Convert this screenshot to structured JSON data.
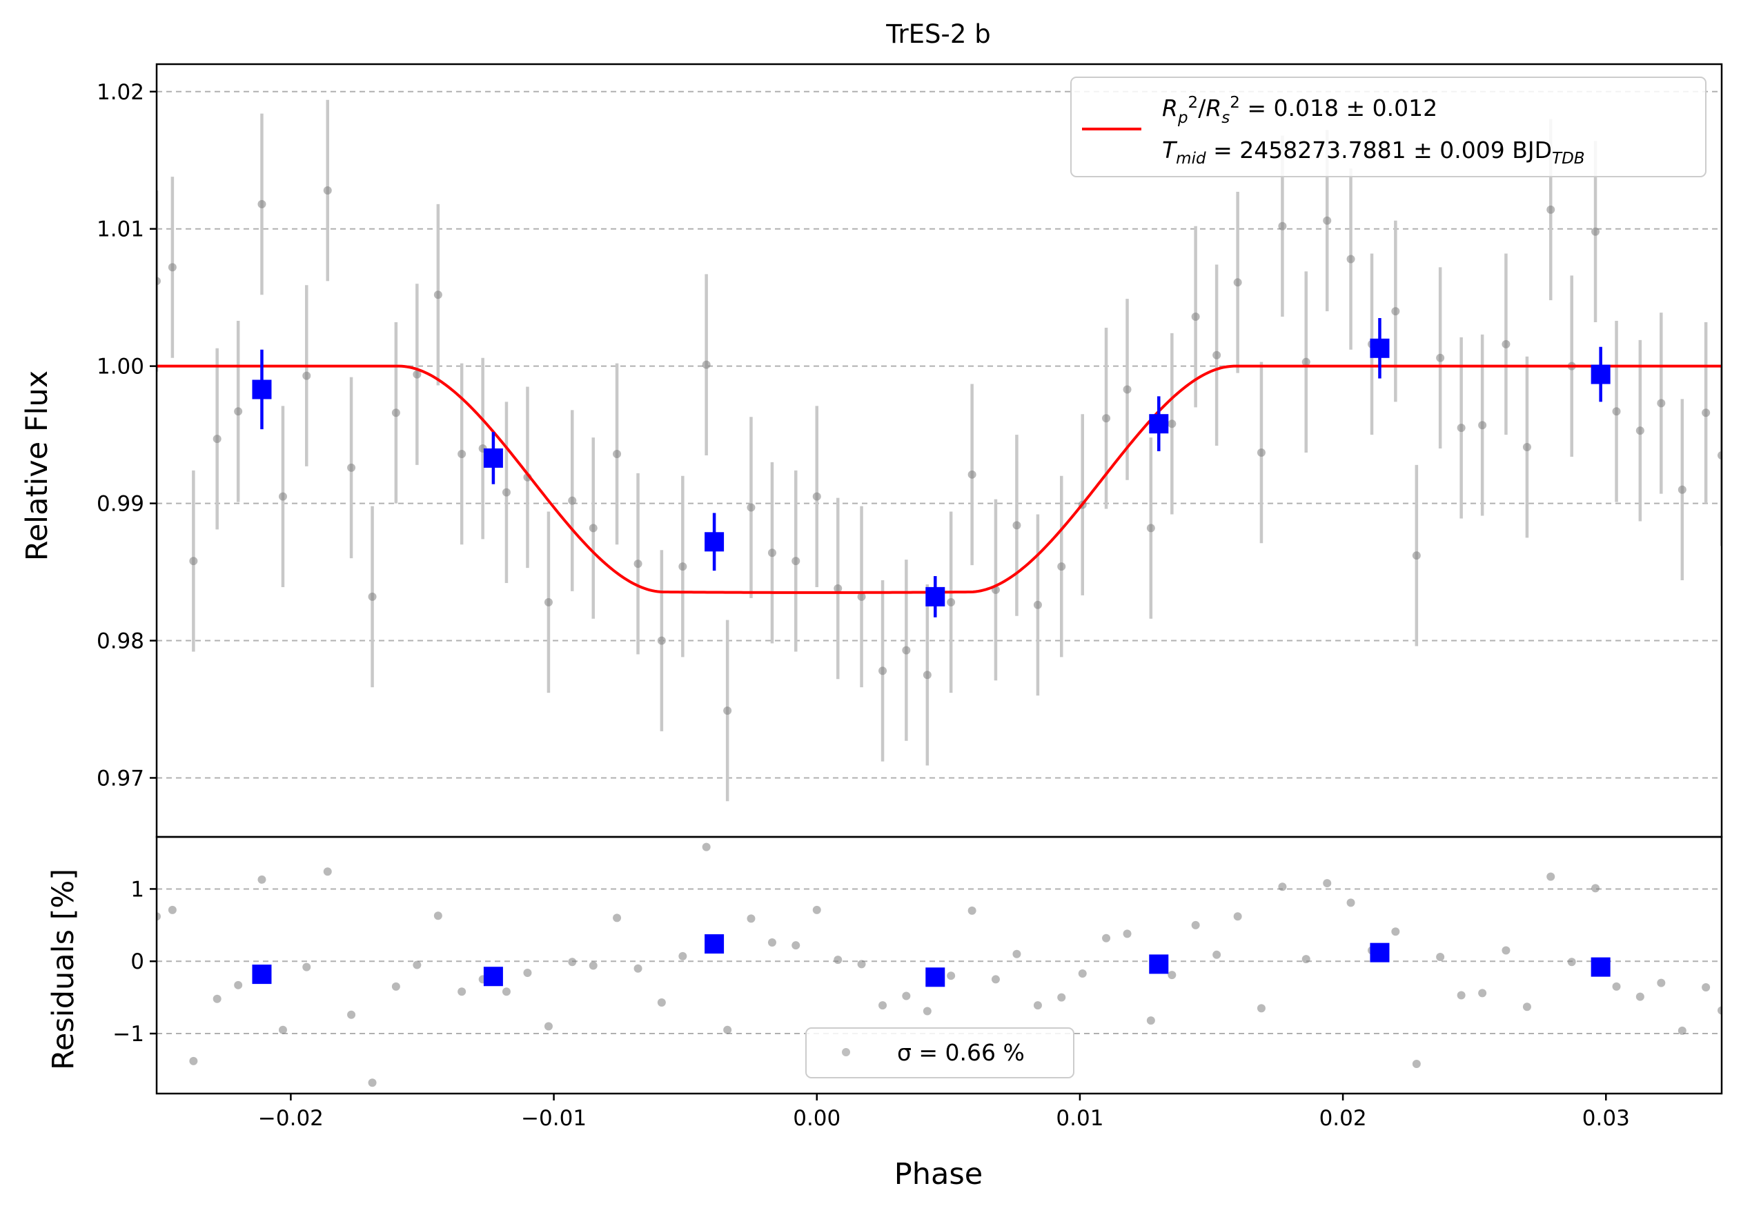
{
  "chart_data": [
    {
      "type": "scatter",
      "title": "TrES-2 b",
      "xlabel": "",
      "ylabel": "Relative Flux",
      "xlim": [
        -0.0251,
        0.0344
      ],
      "ylim": [
        0.9657,
        1.022
      ],
      "xticks": [
        -0.02,
        -0.01,
        0.0,
        0.01,
        0.02,
        0.03
      ],
      "xtick_labels": [
        "−0.02",
        "−0.01",
        "0.00",
        "0.01",
        "0.02",
        "0.03"
      ],
      "yticks": [
        0.97,
        0.98,
        0.99,
        1.0,
        1.01,
        1.02
      ],
      "ytick_labels": [
        "0.97",
        "0.98",
        "0.99",
        "1.00",
        "1.01",
        "1.02"
      ],
      "grid": "horizontal dashed",
      "legend_position": "upper right",
      "legend": {
        "line1": "R²p/R²s = 0.018 ± 0.012",
        "line2": "Tmid = 2458273.7881 ± 0.009 BJDTDB"
      },
      "colors": {
        "data": "#808080",
        "errorbar": "#c8c8c8",
        "binned": "#0000ff",
        "model": "#ff0000"
      },
      "data_points": {
        "x": [
          -0.0251,
          -0.0245,
          -0.0237,
          -0.0228,
          -0.022,
          -0.0211,
          -0.0203,
          -0.0194,
          -0.0186,
          -0.0177,
          -0.0169,
          -0.016,
          -0.0152,
          -0.0144,
          -0.0135,
          -0.0127,
          -0.0118,
          -0.011,
          -0.0102,
          -0.0093,
          -0.0085,
          -0.0076,
          -0.0068,
          -0.0059,
          -0.0051,
          -0.0042,
          -0.0034,
          -0.0025,
          -0.0017,
          -0.0008,
          0.0,
          0.0008,
          0.0017,
          0.0025,
          0.0034,
          0.0042,
          0.0051,
          0.0059,
          0.0068,
          0.0076,
          0.0084,
          0.0093,
          0.0101,
          0.011,
          0.0118,
          0.0127,
          0.0135,
          0.0144,
          0.0152,
          0.016,
          0.0169,
          0.0177,
          0.0186,
          0.0194,
          0.0203,
          0.0211,
          0.022,
          0.0228,
          0.0237,
          0.0245,
          0.0253,
          0.0262,
          0.027,
          0.0279,
          0.0287,
          0.0296,
          0.0304,
          0.0313,
          0.0321,
          0.0329,
          0.0338,
          0.0344
        ],
        "y": [
          1.0062,
          1.0072,
          0.9858,
          0.9947,
          0.9967,
          1.0118,
          0.9905,
          0.9993,
          1.0128,
          0.9926,
          0.9832,
          0.9966,
          0.9994,
          1.0052,
          0.9936,
          0.994,
          0.9908,
          0.9919,
          0.9828,
          0.9902,
          0.9882,
          0.9936,
          0.9856,
          0.98,
          0.9854,
          1.0001,
          0.9749,
          0.9897,
          0.9864,
          0.9858,
          0.9905,
          0.9838,
          0.9832,
          0.9778,
          0.9793,
          0.9775,
          0.9828,
          0.9921,
          0.9837,
          0.9884,
          0.9826,
          0.9854,
          0.9899,
          0.9962,
          0.9983,
          0.9882,
          0.9958,
          1.0036,
          1.0008,
          1.0061,
          0.9937,
          1.0102,
          1.0003,
          1.0106,
          1.0078,
          1.0016,
          1.004,
          0.9862,
          1.0006,
          0.9955,
          0.9957,
          1.0016,
          0.9941,
          1.0114,
          1.0,
          1.0098,
          0.9967,
          0.9953,
          0.9973,
          0.991,
          0.9966,
          0.9935
        ],
        "yerr": 0.0066
      },
      "binned_points": {
        "x": [
          -0.0211,
          -0.0123,
          -0.0039,
          0.0045,
          0.013,
          0.0214,
          0.0298
        ],
        "y": [
          0.9983,
          0.9933,
          0.9872,
          0.9832,
          0.9958,
          1.0013,
          0.9994
        ],
        "yerr": [
          0.0029,
          0.0019,
          0.0021,
          0.0015,
          0.002,
          0.0022,
          0.002
        ]
      },
      "model": {
        "baseline": 1.0,
        "depth": 0.0165,
        "t1": -0.0159,
        "t2": -0.0058,
        "t3": 0.0058,
        "t4": 0.0159
      }
    },
    {
      "type": "scatter",
      "title": "",
      "xlabel": "Phase",
      "ylabel": "Residuals [%]",
      "xlim": [
        -0.0251,
        0.0344
      ],
      "ylim": [
        -1.83,
        1.72
      ],
      "yticks": [
        -1,
        0,
        1
      ],
      "ytick_labels": [
        "−1",
        "0",
        "1"
      ],
      "grid": "horizontal dashed",
      "legend_position": "lower center",
      "legend": {
        "label": "σ = 0.66 %"
      },
      "data_points": {
        "x": [
          -0.0251,
          -0.0245,
          -0.0237,
          -0.0228,
          -0.022,
          -0.0211,
          -0.0203,
          -0.0194,
          -0.0186,
          -0.0177,
          -0.0169,
          -0.016,
          -0.0152,
          -0.0144,
          -0.0135,
          -0.0127,
          -0.0118,
          -0.011,
          -0.0102,
          -0.0093,
          -0.0085,
          -0.0076,
          -0.0068,
          -0.0059,
          -0.0051,
          -0.0042,
          -0.0034,
          -0.0025,
          -0.0017,
          -0.0008,
          0.0,
          0.0008,
          0.0017,
          0.0025,
          0.0034,
          0.0042,
          0.0051,
          0.0059,
          0.0068,
          0.0076,
          0.0084,
          0.0093,
          0.0101,
          0.011,
          0.0118,
          0.0127,
          0.0135,
          0.0144,
          0.0152,
          0.016,
          0.0169,
          0.0177,
          0.0186,
          0.0194,
          0.0203,
          0.0211,
          0.022,
          0.0228,
          0.0237,
          0.0245,
          0.0253,
          0.0262,
          0.027,
          0.0279,
          0.0287,
          0.0296,
          0.0304,
          0.0313,
          0.0321,
          0.0329,
          0.0338,
          0.0344
        ],
        "y": [
          0.62,
          0.71,
          -1.38,
          -0.52,
          -0.33,
          1.13,
          -0.95,
          -0.08,
          1.24,
          -0.74,
          -1.68,
          -0.35,
          -0.05,
          0.63,
          -0.42,
          -0.25,
          -0.42,
          -0.16,
          -0.9,
          -0.01,
          -0.06,
          0.6,
          -0.1,
          -0.57,
          0.07,
          1.58,
          -0.95,
          0.59,
          0.26,
          0.22,
          0.71,
          0.02,
          -0.04,
          -0.61,
          -0.48,
          -0.69,
          -0.2,
          0.7,
          -0.25,
          0.1,
          -0.61,
          -0.5,
          -0.17,
          0.32,
          0.38,
          -0.82,
          -0.19,
          0.5,
          0.09,
          0.62,
          -0.65,
          1.03,
          0.03,
          1.08,
          0.81,
          0.15,
          0.41,
          -1.42,
          0.06,
          -0.47,
          -0.44,
          0.15,
          -0.63,
          1.17,
          -0.01,
          1.01,
          -0.35,
          -0.49,
          -0.3,
          -0.96,
          -0.36,
          -0.68
        ]
      },
      "binned_points": {
        "x": [
          -0.0211,
          -0.0123,
          -0.0039,
          0.0045,
          0.013,
          0.0214,
          0.0298
        ],
        "y": [
          -0.18,
          -0.21,
          0.24,
          -0.22,
          -0.04,
          0.12,
          -0.08
        ]
      }
    }
  ]
}
